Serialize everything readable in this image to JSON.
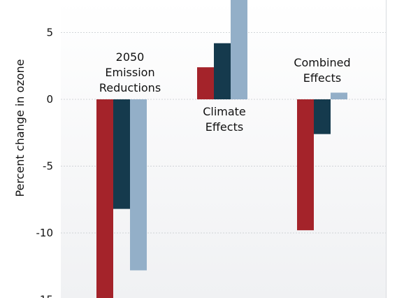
{
  "chart_data": {
    "type": "bar",
    "categories": [
      [
        "2050",
        "Emission",
        "Reductions"
      ],
      [
        "Climate",
        "Effects"
      ],
      [
        "Combined",
        "Effects"
      ]
    ],
    "series": [
      {
        "color": "#a4232a",
        "values": [
          -15.0,
          2.4,
          -9.8
        ]
      },
      {
        "color": "#153a4d",
        "values": [
          -8.2,
          4.2,
          -2.6
        ]
      },
      {
        "color": "#93afc8",
        "values": [
          -12.8,
          8.0,
          0.5
        ]
      }
    ],
    "ylabel": "Percent change in ozone",
    "yticks": [
      5,
      0,
      -5,
      -10,
      -15
    ],
    "ytick_labels": [
      "5",
      "0",
      "-5",
      "-10",
      "-15"
    ],
    "ylim": [
      -15.5,
      7.6
    ],
    "grid": true,
    "legend": "none"
  }
}
